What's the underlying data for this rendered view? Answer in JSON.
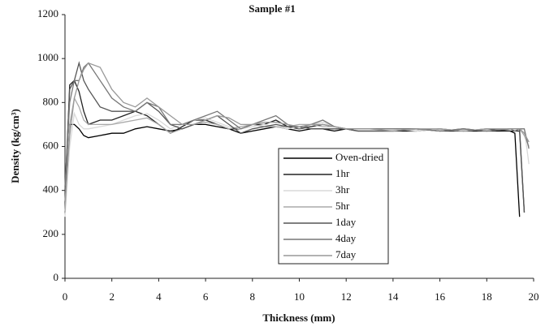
{
  "chart_data": {
    "type": "line",
    "title": "Sample #1",
    "x_label": "Thickness (mm)",
    "y_label": "Density (kg/cm³)",
    "x": [
      0,
      0.2,
      0.4,
      0.6,
      0.8,
      1,
      1.5,
      2,
      2.5,
      3,
      3.5,
      4,
      4.5,
      5,
      5.5,
      6,
      6.5,
      7,
      7.5,
      8,
      8.5,
      9,
      9.5,
      10,
      10.5,
      11,
      11.5,
      12,
      12.5,
      13,
      14,
      15,
      16,
      17,
      18,
      19,
      19.2,
      19.4,
      19.6,
      19.8
    ],
    "series": [
      {
        "name": "Oven-dried",
        "color": "#000000",
        "values": [
          300,
          700,
          700,
          680,
          650,
          640,
          650,
          660,
          660,
          680,
          690,
          680,
          670,
          680,
          700,
          700,
          690,
          680,
          660,
          670,
          680,
          690,
          680,
          670,
          680,
          680,
          670,
          680,
          670,
          670,
          670,
          670,
          680,
          670,
          670,
          670,
          660,
          280,
          null,
          null
        ]
      },
      {
        "name": "1hr",
        "color": "#222222",
        "values": [
          350,
          880,
          900,
          850,
          760,
          700,
          720,
          720,
          740,
          760,
          740,
          700,
          660,
          690,
          720,
          720,
          700,
          680,
          680,
          700,
          700,
          720,
          690,
          680,
          690,
          700,
          690,
          680,
          680,
          680,
          680,
          680,
          670,
          670,
          680,
          670,
          670,
          670,
          300,
          null
        ]
      },
      {
        "name": "3hr",
        "color": "#d9d9d9",
        "values": [
          280,
          600,
          750,
          700,
          680,
          680,
          690,
          700,
          720,
          740,
          750,
          720,
          680,
          700,
          720,
          730,
          710,
          690,
          680,
          690,
          700,
          690,
          680,
          690,
          700,
          710,
          690,
          680,
          680,
          680,
          680,
          670,
          680,
          670,
          680,
          680,
          680,
          680,
          680,
          520
        ]
      },
      {
        "name": "5hr",
        "color": "#aaaaaa",
        "values": [
          300,
          700,
          820,
          780,
          720,
          700,
          700,
          700,
          710,
          720,
          730,
          700,
          660,
          680,
          700,
          710,
          700,
          680,
          690,
          700,
          690,
          690,
          690,
          700,
          700,
          690,
          690,
          680,
          680,
          680,
          680,
          680,
          670,
          680,
          670,
          680,
          680,
          680,
          650,
          600
        ]
      },
      {
        "name": "1day",
        "color": "#555555",
        "values": [
          400,
          860,
          900,
          980,
          900,
          860,
          780,
          760,
          760,
          760,
          800,
          760,
          700,
          680,
          700,
          720,
          740,
          700,
          660,
          680,
          690,
          700,
          690,
          690,
          680,
          680,
          680,
          680,
          670,
          670,
          670,
          680,
          670,
          680,
          670,
          680,
          680,
          680,
          300,
          null
        ]
      },
      {
        "name": "4day",
        "color": "#777777",
        "values": [
          420,
          800,
          900,
          900,
          960,
          980,
          900,
          820,
          780,
          760,
          800,
          780,
          700,
          700,
          720,
          740,
          760,
          720,
          680,
          700,
          720,
          740,
          700,
          680,
          700,
          720,
          690,
          680,
          680,
          680,
          680,
          680,
          670,
          680,
          670,
          680,
          670,
          680,
          680,
          590
        ]
      },
      {
        "name": "7day",
        "color": "#999999",
        "values": [
          350,
          650,
          820,
          900,
          950,
          980,
          960,
          860,
          800,
          780,
          820,
          780,
          740,
          700,
          700,
          720,
          740,
          730,
          700,
          700,
          710,
          710,
          700,
          690,
          700,
          700,
          690,
          680,
          680,
          680,
          670,
          680,
          680,
          670,
          680,
          680,
          680,
          680,
          660,
          620
        ]
      }
    ],
    "xlim": [
      0,
      20
    ],
    "xticks": [
      0,
      2,
      4,
      6,
      8,
      10,
      12,
      14,
      16,
      18,
      20
    ],
    "ylim": [
      0,
      1200
    ],
    "yticks": [
      0,
      200,
      400,
      600,
      800,
      1000,
      1200
    ],
    "grid": false
  }
}
